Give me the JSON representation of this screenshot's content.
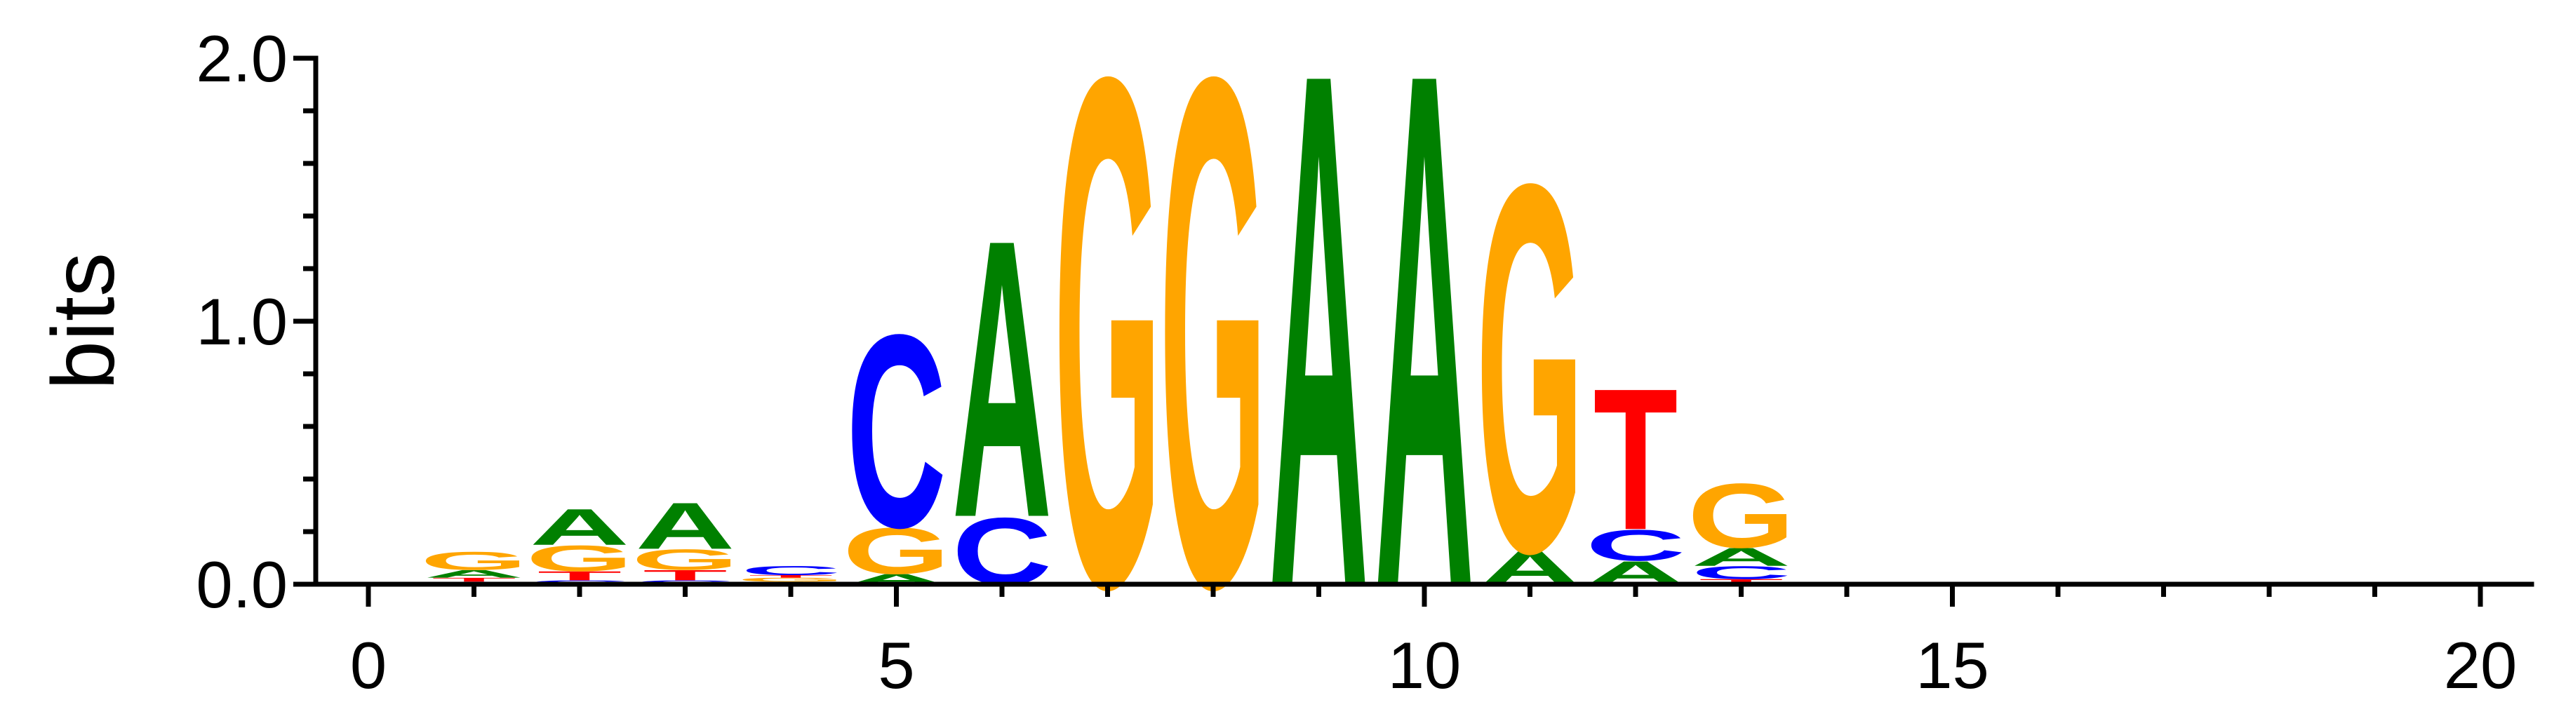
{
  "chart_data": {
    "type": "sequence-logo",
    "ylabel": "bits",
    "xlabel": "",
    "ylim": [
      0,
      2
    ],
    "xlim": [
      -0.4,
      20.4
    ],
    "x_ticks": [
      0,
      5,
      10,
      15,
      20
    ],
    "y_ticks": [
      0,
      1,
      2
    ],
    "y_tick_labels": [
      "0.0",
      "1.0",
      "2.0"
    ],
    "colors": {
      "A": "#008000",
      "C": "#0000ff",
      "G": "#ffa500",
      "T": "#ff0000"
    },
    "positions": [
      {
        "pos": 1,
        "letters": [
          {
            "base": "C",
            "bits": 0.01
          },
          {
            "base": "T",
            "bits": 0.015
          },
          {
            "base": "A",
            "bits": 0.03
          },
          {
            "base": "G",
            "bits": 0.07
          }
        ]
      },
      {
        "pos": 2,
        "letters": [
          {
            "base": "C",
            "bits": 0.015
          },
          {
            "base": "T",
            "bits": 0.035
          },
          {
            "base": "G",
            "bits": 0.1
          },
          {
            "base": "A",
            "bits": 0.14
          }
        ]
      },
      {
        "pos": 3,
        "letters": [
          {
            "base": "C",
            "bits": 0.015
          },
          {
            "base": "T",
            "bits": 0.04
          },
          {
            "base": "G",
            "bits": 0.08
          },
          {
            "base": "A",
            "bits": 0.18
          }
        ]
      },
      {
        "pos": 4,
        "letters": [
          {
            "base": "A",
            "bits": 0.01
          },
          {
            "base": "G",
            "bits": 0.015
          },
          {
            "base": "T",
            "bits": 0.01
          },
          {
            "base": "C",
            "bits": 0.035
          }
        ]
      },
      {
        "pos": 5,
        "letters": [
          {
            "base": "A",
            "bits": 0.04
          },
          {
            "base": "G",
            "bits": 0.18
          },
          {
            "base": "C",
            "bits": 0.75
          }
        ]
      },
      {
        "pos": 6,
        "letters": [
          {
            "base": "C",
            "bits": 0.26
          },
          {
            "base": "A",
            "bits": 1.08
          }
        ]
      },
      {
        "pos": 7,
        "letters": [
          {
            "base": "G",
            "bits": 1.98
          }
        ]
      },
      {
        "pos": 8,
        "letters": [
          {
            "base": "G",
            "bits": 1.98
          }
        ]
      },
      {
        "pos": 9,
        "letters": [
          {
            "base": "A",
            "bits": 2.0
          }
        ]
      },
      {
        "pos": 10,
        "letters": [
          {
            "base": "A",
            "bits": 2.0
          }
        ]
      },
      {
        "pos": 11,
        "letters": [
          {
            "base": "A",
            "bits": 0.13
          },
          {
            "base": "G",
            "bits": 1.43
          }
        ]
      },
      {
        "pos": 12,
        "letters": [
          {
            "base": "A",
            "bits": 0.09
          },
          {
            "base": "C",
            "bits": 0.12
          },
          {
            "base": "T",
            "bits": 0.55
          }
        ]
      },
      {
        "pos": 13,
        "letters": [
          {
            "base": "T",
            "bits": 0.02
          },
          {
            "base": "C",
            "bits": 0.05
          },
          {
            "base": "A",
            "bits": 0.07
          },
          {
            "base": "G",
            "bits": 0.25
          }
        ]
      }
    ]
  }
}
